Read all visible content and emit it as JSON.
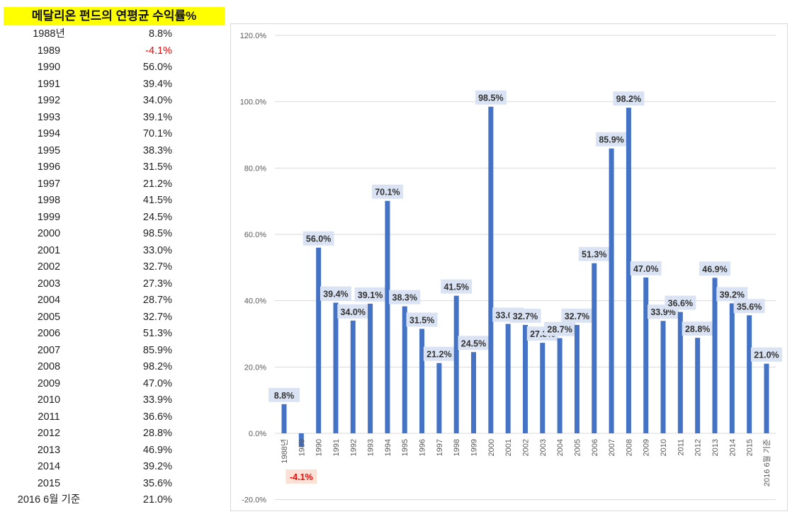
{
  "table": {
    "title": "메달리온 펀드의 연평균 수익률%",
    "rows": [
      {
        "year": "1988년",
        "value": "8.8%"
      },
      {
        "year": "1989",
        "value": "-4.1%"
      },
      {
        "year": "1990",
        "value": "56.0%"
      },
      {
        "year": "1991",
        "value": "39.4%"
      },
      {
        "year": "1992",
        "value": "34.0%"
      },
      {
        "year": "1993",
        "value": "39.1%"
      },
      {
        "year": "1994",
        "value": "70.1%"
      },
      {
        "year": "1995",
        "value": "38.3%"
      },
      {
        "year": "1996",
        "value": "31.5%"
      },
      {
        "year": "1997",
        "value": "21.2%"
      },
      {
        "year": "1998",
        "value": "41.5%"
      },
      {
        "year": "1999",
        "value": "24.5%"
      },
      {
        "year": "2000",
        "value": "98.5%"
      },
      {
        "year": "2001",
        "value": "33.0%"
      },
      {
        "year": "2002",
        "value": "32.7%"
      },
      {
        "year": "2003",
        "value": "27.3%"
      },
      {
        "year": "2004",
        "value": "28.7%"
      },
      {
        "year": "2005",
        "value": "32.7%"
      },
      {
        "year": "2006",
        "value": "51.3%"
      },
      {
        "year": "2007",
        "value": "85.9%"
      },
      {
        "year": "2008",
        "value": "98.2%"
      },
      {
        "year": "2009",
        "value": "47.0%"
      },
      {
        "year": "2010",
        "value": "33.9%"
      },
      {
        "year": "2011",
        "value": "36.6%"
      },
      {
        "year": "2012",
        "value": "28.8%"
      },
      {
        "year": "2013",
        "value": "46.9%"
      },
      {
        "year": "2014",
        "value": "39.2%"
      },
      {
        "year": "2015",
        "value": "35.6%"
      },
      {
        "year": "2016 6월 기준",
        "value": "21.0%"
      }
    ]
  },
  "chart_data": {
    "type": "bar",
    "title": "",
    "xlabel": "",
    "ylabel": "",
    "categories": [
      "1988년",
      "1989",
      "1990",
      "1991",
      "1992",
      "1993",
      "1994",
      "1995",
      "1996",
      "1997",
      "1998",
      "1999",
      "2000",
      "2001",
      "2002",
      "2003",
      "2004",
      "2005",
      "2006",
      "2007",
      "2008",
      "2009",
      "2010",
      "2011",
      "2012",
      "2013",
      "2014",
      "2015",
      "2016 6월 기준"
    ],
    "values": [
      8.8,
      -4.1,
      56.0,
      39.4,
      34.0,
      39.1,
      70.1,
      38.3,
      31.5,
      21.2,
      41.5,
      24.5,
      98.5,
      33.0,
      32.7,
      27.3,
      28.7,
      32.7,
      51.3,
      85.9,
      98.2,
      47.0,
      33.9,
      36.6,
      28.8,
      46.9,
      39.2,
      35.6,
      21.0
    ],
    "data_labels": [
      "8.8%",
      "-4.1%",
      "56.0%",
      "39.4%",
      "34.0%",
      "39.1%",
      "70.1%",
      "38.3%",
      "31.5%",
      "21.2%",
      "41.5%",
      "24.5%",
      "98.5%",
      "33.0%",
      "32.7%",
      "27.3%",
      "28.7%",
      "32.7%",
      "51.3%",
      "85.9%",
      "98.2%",
      "47.0%",
      "33.9%",
      "36.6%",
      "28.8%",
      "46.9%",
      "39.2%",
      "35.6%",
      "21.0%"
    ],
    "ylim": [
      -20,
      120
    ],
    "yticks": [
      -20,
      0,
      20,
      40,
      60,
      80,
      100,
      120
    ],
    "ytick_labels": [
      "-20.0%",
      "0.0%",
      "20.0%",
      "40.0%",
      "60.0%",
      "80.0%",
      "100.0%",
      "120.0%"
    ],
    "grid": true,
    "colors": {
      "bar": "#4472c4",
      "label_bg": "#dae3f3",
      "neg_label_bg": "#fbe0d6",
      "neg_label": "#ff0000",
      "grid": "#d9d9d9"
    }
  }
}
